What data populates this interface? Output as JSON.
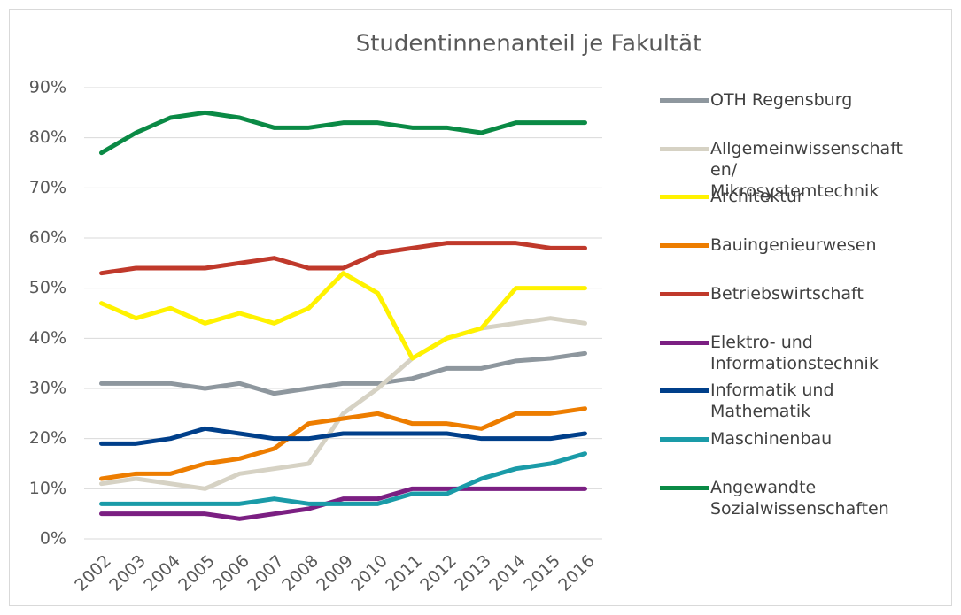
{
  "chart_data": {
    "type": "line",
    "title": "Studentinnenanteil je Fakultät",
    "categories": [
      "2002",
      "2003",
      "2004",
      "2005",
      "2006",
      "2007",
      "2008",
      "2009",
      "2010",
      "2011",
      "2012",
      "2013",
      "2014",
      "2015",
      "2016"
    ],
    "series": [
      {
        "name": "OTH Regensburg",
        "color": "#8e979e",
        "values": [
          31,
          31,
          31,
          30,
          31,
          29,
          30,
          31,
          31,
          32,
          34,
          34,
          35.5,
          36,
          37
        ]
      },
      {
        "name": "Allgemeinwissenschaften/ Mikrosystemtechnik",
        "color": "#d6d2c4",
        "values": [
          11,
          12,
          11,
          10,
          13,
          14,
          15,
          25,
          30,
          36,
          40,
          42,
          43,
          44,
          43
        ]
      },
      {
        "name": "Architektur",
        "color": "#fff200",
        "values": [
          47,
          44,
          46,
          43,
          45,
          43,
          46,
          53,
          49,
          36,
          40,
          42,
          50,
          50,
          50
        ]
      },
      {
        "name": "Bauingenieurwesen",
        "color": "#ed7d00",
        "values": [
          12,
          13,
          13,
          15,
          16,
          18,
          23,
          24,
          25,
          23,
          23,
          22,
          25,
          25,
          26
        ]
      },
      {
        "name": "Betriebswirtschaft",
        "color": "#c0392b",
        "values": [
          53,
          54,
          54,
          54,
          55,
          56,
          54,
          54,
          57,
          58,
          59,
          59,
          59,
          58,
          58
        ]
      },
      {
        "name": "Elektro- und Informationstechnik",
        "color": "#7b1f82",
        "values": [
          5,
          5,
          5,
          5,
          4,
          5,
          6,
          8,
          8,
          10,
          10,
          10,
          10,
          10,
          10
        ]
      },
      {
        "name": "Informatik und Mathematik",
        "color": "#003f8a",
        "values": [
          19,
          19,
          20,
          22,
          21,
          20,
          20,
          21,
          21,
          21,
          21,
          20,
          20,
          20,
          21
        ]
      },
      {
        "name": "Maschinenbau",
        "color": "#1a9ba8",
        "values": [
          7,
          7,
          7,
          7,
          7,
          8,
          7,
          7,
          7,
          9,
          9,
          12,
          14,
          15,
          17
        ]
      },
      {
        "name": "Angewandte Sozialwissenschaften",
        "color": "#0a8a45",
        "values": [
          77,
          81,
          84,
          85,
          84,
          82,
          82,
          83,
          83,
          82,
          82,
          81,
          83,
          83,
          83
        ]
      }
    ],
    "ylim": [
      0,
      90
    ],
    "yticks": [
      {
        "value": 0,
        "label": "0%"
      },
      {
        "value": 10,
        "label": "10%"
      },
      {
        "value": 20,
        "label": "20%"
      },
      {
        "value": 30,
        "label": "30%"
      },
      {
        "value": 40,
        "label": "40%"
      },
      {
        "value": 50,
        "label": "50%"
      },
      {
        "value": 60,
        "label": "60%"
      },
      {
        "value": 70,
        "label": "70%"
      },
      {
        "value": 80,
        "label": "80%"
      },
      {
        "value": 90,
        "label": "90%"
      }
    ],
    "grid": true,
    "legend": "right"
  }
}
